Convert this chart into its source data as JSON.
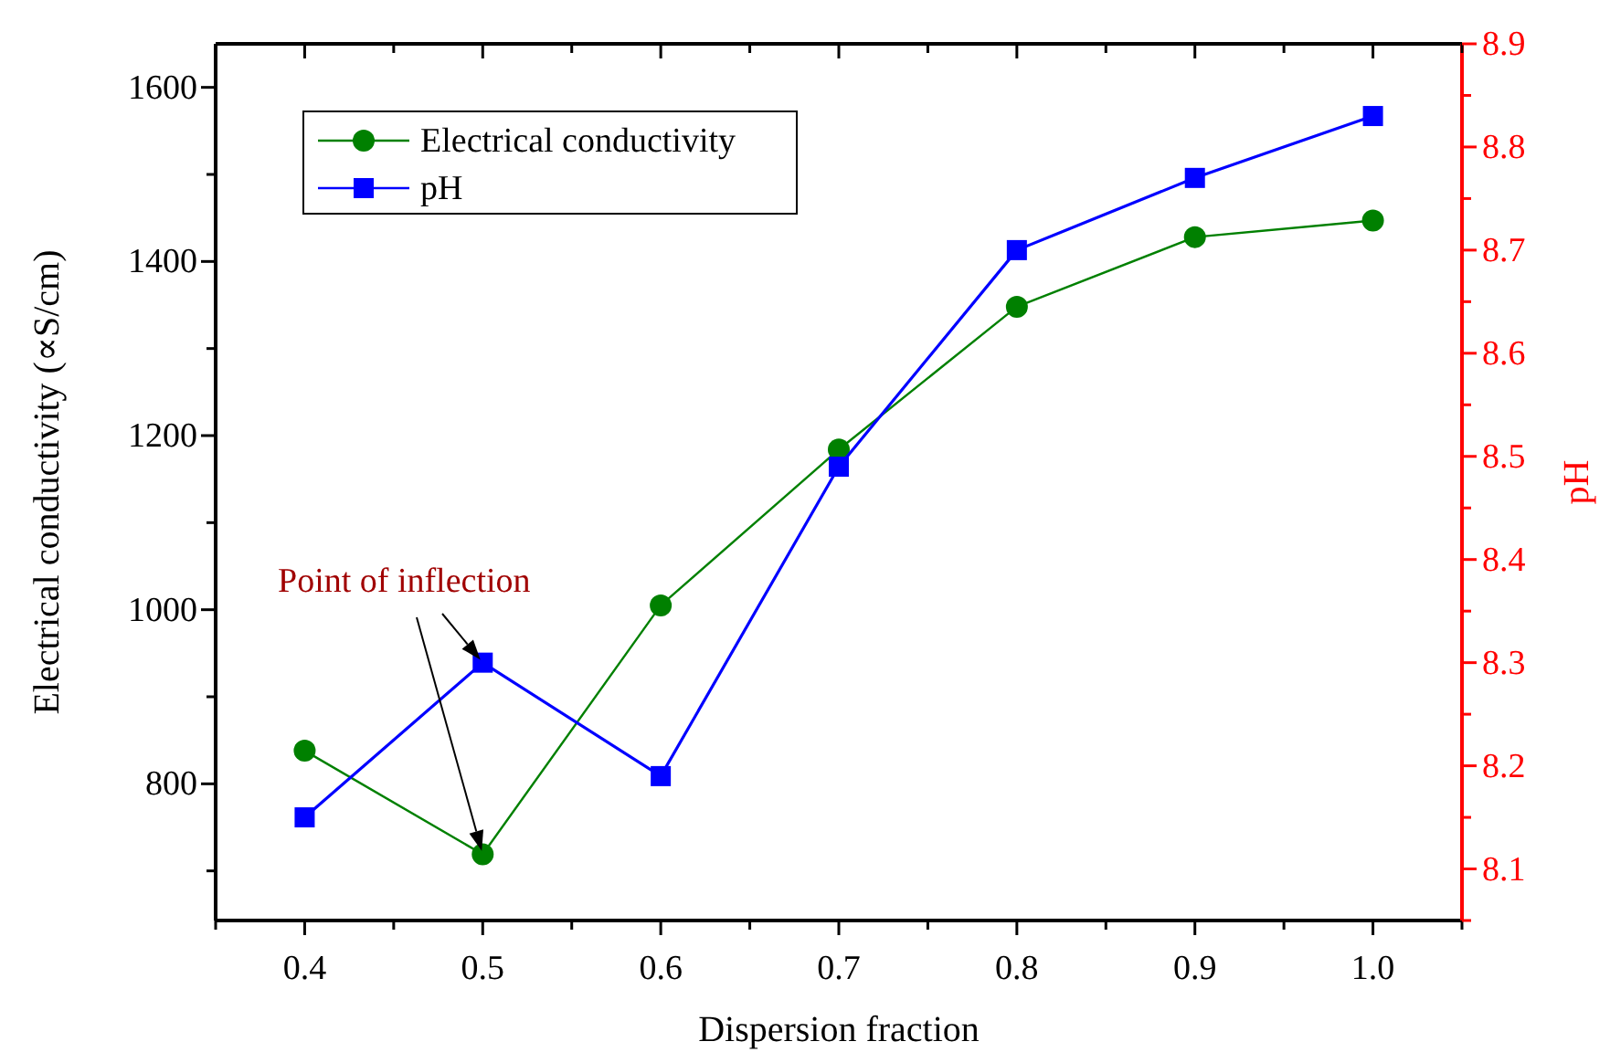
{
  "chart_data": {
    "type": "line",
    "xlabel": "Dispersion fraction",
    "ylabel": "Electrical conductivity (∝S/cm)",
    "y2label": "pH",
    "x": [
      0.4,
      0.5,
      0.6,
      0.7,
      0.8,
      0.9,
      1.0
    ],
    "series": [
      {
        "name": "Electrical conductivity",
        "color": "#008000",
        "marker": "circle",
        "values": [
          838,
          719,
          1005,
          1184,
          1348,
          1428,
          1447
        ]
      },
      {
        "name": "pH",
        "color": "#0000ff",
        "marker": "square",
        "axis": "y2",
        "values": [
          8.15,
          8.3,
          8.19,
          8.49,
          8.7,
          8.77,
          8.83
        ]
      }
    ],
    "xlim": [
      0.35,
      1.05
    ],
    "xticks": [
      {
        "value": 0.35,
        "label": null
      },
      0.4,
      {
        "value": 0.45,
        "label": null
      },
      0.5,
      {
        "value": 0.55,
        "label": null
      },
      0.6,
      {
        "value": 0.65,
        "label": null
      },
      0.7,
      {
        "value": 0.75,
        "label": null
      },
      0.8,
      {
        "value": 0.85,
        "label": null
      },
      0.9,
      {
        "value": 0.95,
        "label": null
      },
      {
        "value": 1.0,
        "label": "1.0"
      },
      {
        "value": 1.05,
        "label": null
      }
    ],
    "ylim": [
      643,
      1650
    ],
    "yticks": [
      {
        "value": 700,
        "label": null
      },
      800,
      {
        "value": 900,
        "label": null
      },
      1000,
      {
        "value": 1100,
        "label": null
      },
      1200,
      {
        "value": 1300,
        "label": null
      },
      1400,
      {
        "value": 1500,
        "label": null
      },
      1600
    ],
    "y2lim": [
      8.05,
      8.9
    ],
    "y2ticks": [
      {
        "value": 8.05,
        "label": null
      },
      8.1,
      {
        "value": 8.15,
        "label": null
      },
      8.2,
      {
        "value": 8.25,
        "label": null
      },
      8.3,
      {
        "value": 8.35,
        "label": null
      },
      8.4,
      {
        "value": 8.45,
        "label": null
      },
      8.5,
      {
        "value": 8.55,
        "label": null
      },
      8.6,
      {
        "value": 8.65,
        "label": null
      },
      8.7,
      {
        "value": 8.75,
        "label": null
      },
      8.8,
      {
        "value": 8.85,
        "label": null
      },
      8.9
    ],
    "annotations": [
      "Point of inflection"
    ],
    "legend": "top left",
    "grid": false,
    "line_style": "solid"
  }
}
